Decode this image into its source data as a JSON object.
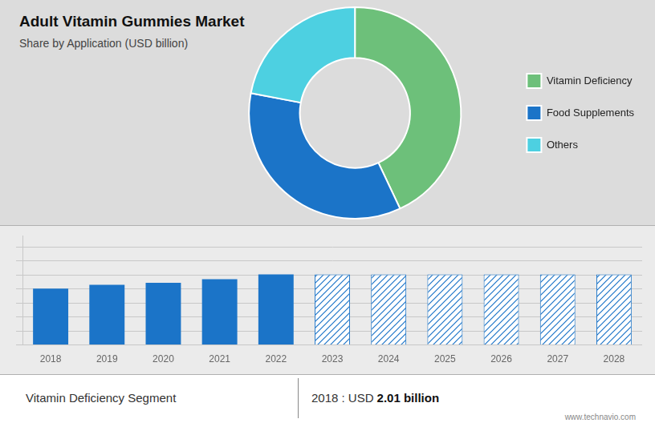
{
  "chart_data": [
    {
      "type": "doughnut",
      "title": "Adult Vitamin Gummies Market",
      "subtitle": "Share by Application (USD billion)",
      "categories": [
        "Vitamin Deficiency",
        "Food Supplements",
        "Others"
      ],
      "values": [
        43,
        35,
        22
      ],
      "colors": [
        "#6dc07a",
        "#1b74c8",
        "#4dd0e1"
      ],
      "legend": "right"
    },
    {
      "type": "bar",
      "categories": [
        "2018",
        "2019",
        "2020",
        "2021",
        "2022",
        "2023",
        "2024",
        "2025",
        "2026",
        "2027",
        "2028"
      ],
      "values": [
        2.01,
        2.15,
        2.22,
        2.35,
        2.52,
        2.52,
        2.52,
        2.52,
        2.52,
        2.52,
        2.52
      ],
      "colors": [
        "#1b74c8",
        "#1b74c8",
        "#1b74c8",
        "#1b74c8",
        "#1b74c8",
        "#ffffff",
        "#ffffff",
        "#ffffff",
        "#ffffff",
        "#ffffff",
        "#ffffff"
      ],
      "ylim": [
        0,
        3.906
      ],
      "yticks": [
        0,
        0.5,
        1,
        1.5,
        2,
        2.5,
        3,
        3.5
      ],
      "grid": true,
      "tick_labels": "x",
      "annotations": [
        "Vitamin Deficiency Segment",
        "2018 : USD",
        "2.01 billion",
        "www.technavio.com"
      ]
    }
  ]
}
